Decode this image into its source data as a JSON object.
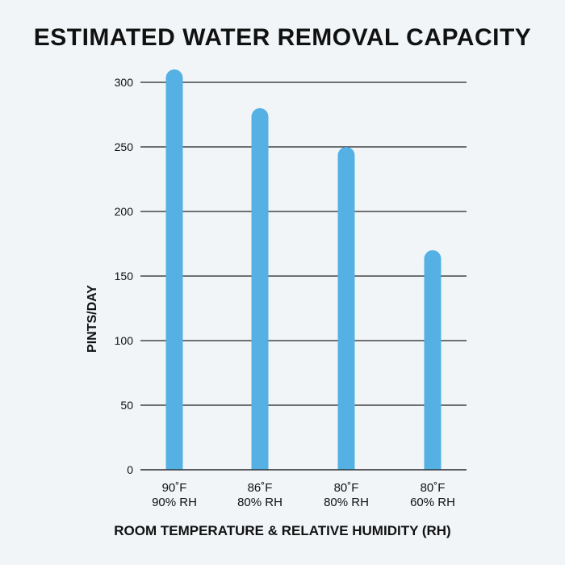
{
  "chart_data": {
    "type": "bar",
    "title": "ESTIMATED WATER REMOVAL CAPACITY",
    "xlabel": "ROOM TEMPERATURE & RELATIVE HUMIDITY (RH)",
    "ylabel": "PINTS/DAY",
    "ylim": [
      0,
      300
    ],
    "yticks": [
      0,
      50,
      100,
      150,
      200,
      250,
      300
    ],
    "grid": true,
    "categories": [
      {
        "temp": "90˚F",
        "rh": "90% RH"
      },
      {
        "temp": "86˚F",
        "rh": "80% RH"
      },
      {
        "temp": "80˚F",
        "rh": "80% RH"
      },
      {
        "temp": "80˚F",
        "rh": "60% RH"
      }
    ],
    "values": [
      310,
      280,
      250,
      170
    ],
    "bar_color": "#55b1e3"
  }
}
